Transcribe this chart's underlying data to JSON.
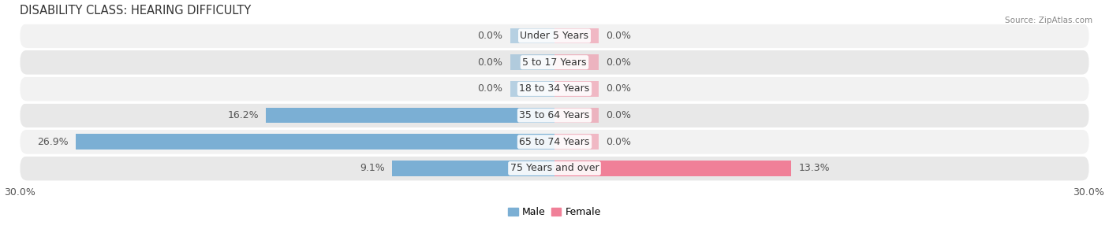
{
  "title": "DISABILITY CLASS: HEARING DIFFICULTY",
  "source": "Source: ZipAtlas.com",
  "categories": [
    "Under 5 Years",
    "5 to 17 Years",
    "18 to 34 Years",
    "35 to 64 Years",
    "65 to 74 Years",
    "75 Years and over"
  ],
  "male_values": [
    0.0,
    0.0,
    0.0,
    16.2,
    26.9,
    9.1
  ],
  "female_values": [
    0.0,
    0.0,
    0.0,
    0.0,
    0.0,
    13.3
  ],
  "xlim": 30.0,
  "male_color": "#7bafd4",
  "female_color": "#f08098",
  "bar_bg_color_odd": "#f0f0f0",
  "bar_bg_color_even": "#e6e6e6",
  "label_color": "#555555",
  "title_color": "#333333",
  "bar_height": 0.58,
  "label_fontsize": 9,
  "title_fontsize": 10.5,
  "tick_fontsize": 9,
  "zero_stub": 2.5,
  "row_gap_color": "#ffffff"
}
